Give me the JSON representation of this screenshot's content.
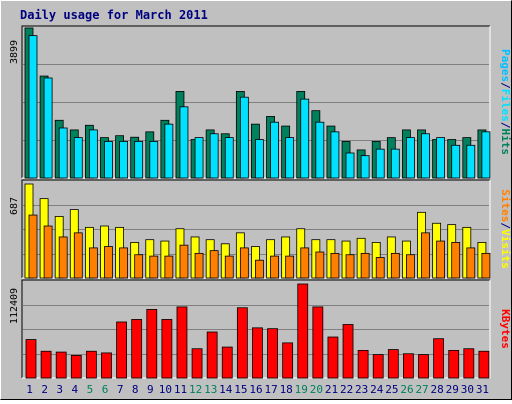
{
  "title": "Daily usage for March 2011",
  "colors": {
    "background": "#c0c0c0",
    "hits": "#00805c",
    "files": "#00e0ff",
    "pages": "#00c0ff",
    "visits": "#ffff00",
    "sites": "#ff8000",
    "kbytes": "#ff0000",
    "weekend_label": "#00805c",
    "weekday_label": "#000080"
  },
  "chart_data": [
    {
      "type": "bar",
      "panel": "hits-files-pages",
      "ymax_label": "3899",
      "ylim": [
        0,
        3899
      ],
      "legend": [
        "Pages",
        "/",
        "Files",
        "/",
        "Hits"
      ],
      "x": [
        "1",
        "2",
        "3",
        "4",
        "5",
        "6",
        "7",
        "8",
        "9",
        "10",
        "11",
        "12",
        "13",
        "14",
        "15",
        "16",
        "17",
        "18",
        "19",
        "20",
        "21",
        "22",
        "23",
        "24",
        "25",
        "26",
        "27",
        "28",
        "29",
        "30",
        "31"
      ],
      "weekend": [
        false,
        false,
        false,
        false,
        true,
        true,
        false,
        false,
        false,
        false,
        false,
        true,
        true,
        false,
        false,
        false,
        false,
        false,
        true,
        true,
        false,
        false,
        false,
        false,
        false,
        true,
        true,
        false,
        false,
        false,
        false
      ],
      "series": [
        {
          "name": "Hits",
          "values": [
            3899,
            2650,
            1500,
            1250,
            1370,
            1050,
            1100,
            1060,
            1200,
            1500,
            2250,
            1000,
            1250,
            1150,
            2250,
            1400,
            1600,
            1350,
            2250,
            1750,
            1350,
            950,
            730,
            950,
            1050,
            1250,
            1250,
            1000,
            1000,
            1050,
            1250
          ]
        },
        {
          "name": "Files",
          "values": [
            3700,
            2600,
            1300,
            1050,
            1250,
            950,
            950,
            950,
            950,
            1400,
            1850,
            1050,
            1150,
            1050,
            2100,
            1000,
            1450,
            1050,
            2050,
            1450,
            1200,
            650,
            580,
            750,
            750,
            1050,
            1150,
            1050,
            850,
            850,
            1200
          ]
        }
      ]
    },
    {
      "type": "bar",
      "panel": "visits-sites",
      "ymax_label": "687",
      "ylim": [
        0,
        687
      ],
      "legend": [
        "Sites",
        "/",
        "Visits"
      ],
      "x": [
        "1",
        "2",
        "3",
        "4",
        "5",
        "6",
        "7",
        "8",
        "9",
        "10",
        "11",
        "12",
        "13",
        "14",
        "15",
        "16",
        "17",
        "18",
        "19",
        "20",
        "21",
        "22",
        "23",
        "24",
        "25",
        "26",
        "27",
        "28",
        "29",
        "30",
        "31"
      ],
      "series": [
        {
          "name": "Visits",
          "values": [
            687,
            580,
            450,
            500,
            370,
            380,
            370,
            260,
            280,
            270,
            360,
            300,
            280,
            250,
            330,
            230,
            280,
            300,
            360,
            280,
            280,
            270,
            290,
            260,
            300,
            270,
            480,
            400,
            390,
            370,
            260
          ]
        },
        {
          "name": "Sites",
          "values": [
            460,
            380,
            300,
            330,
            220,
            230,
            220,
            170,
            160,
            160,
            240,
            180,
            200,
            160,
            220,
            130,
            160,
            160,
            220,
            190,
            180,
            170,
            180,
            150,
            180,
            170,
            330,
            270,
            260,
            220,
            180
          ]
        }
      ]
    },
    {
      "type": "bar",
      "panel": "kbytes",
      "ymax_label": "112409",
      "ylim": [
        0,
        112409
      ],
      "legend": [
        "KBytes"
      ],
      "x": [
        "1",
        "2",
        "3",
        "4",
        "5",
        "6",
        "7",
        "8",
        "9",
        "10",
        "11",
        "12",
        "13",
        "14",
        "15",
        "16",
        "17",
        "18",
        "19",
        "20",
        "21",
        "22",
        "23",
        "24",
        "25",
        "26",
        "27",
        "28",
        "29",
        "30",
        "31"
      ],
      "series": [
        {
          "name": "KBytes",
          "values": [
            46000,
            32000,
            31000,
            27000,
            32000,
            30000,
            67000,
            70000,
            82000,
            70000,
            85000,
            35000,
            55000,
            37000,
            84000,
            60000,
            59000,
            42000,
            112409,
            85000,
            49000,
            64000,
            33000,
            28000,
            34000,
            29000,
            28000,
            47000,
            33000,
            35000,
            32000
          ]
        }
      ]
    }
  ]
}
